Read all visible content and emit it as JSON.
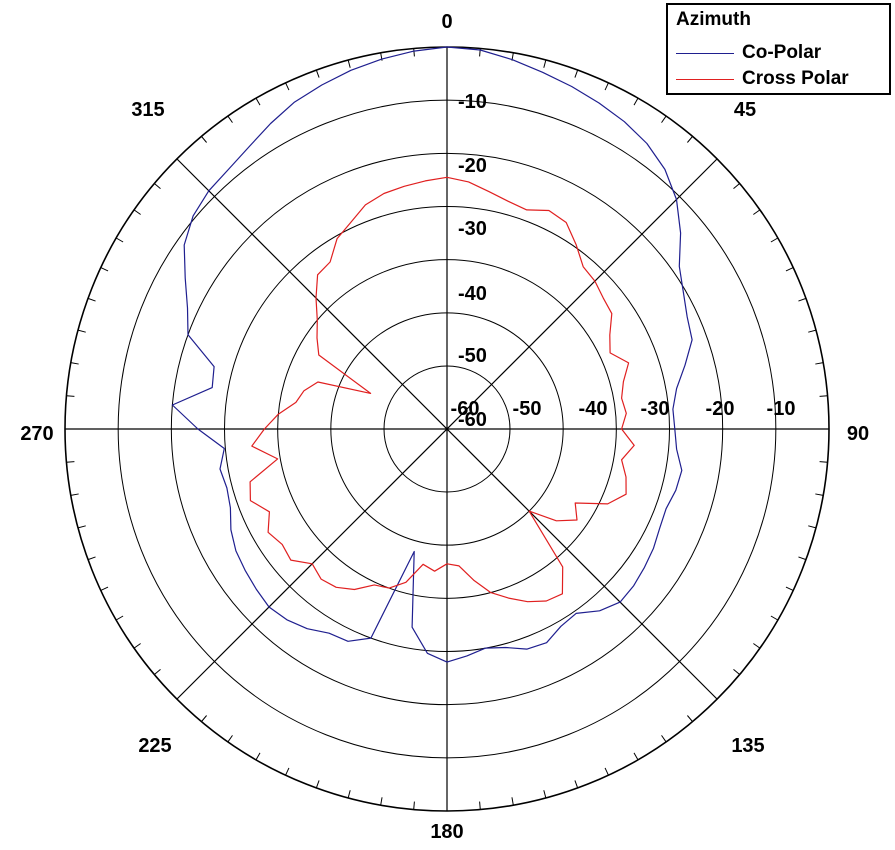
{
  "chart_data": {
    "type": "line",
    "polar": true,
    "legend": {
      "title": "Azimuth",
      "placement": "top-right"
    },
    "angle_ticks": [
      0,
      45,
      90,
      135,
      180,
      225,
      270,
      315
    ],
    "angle_labels": [
      "0",
      "45",
      "90",
      "135",
      "180",
      "225",
      "270",
      "315"
    ],
    "radial_range": [
      -60,
      0
    ],
    "radial_rings": [
      -60,
      -50,
      -40,
      -30,
      -20,
      -10,
      0
    ],
    "radial_labels_vertical": [
      "-10",
      "-20",
      "-30",
      "-40",
      "-50",
      "-60"
    ],
    "radial_labels_horizontal": [
      "-60",
      "-50",
      "-40",
      "-30",
      "-20",
      "-10"
    ],
    "grid": true,
    "series": [
      {
        "name": "Co-Polar",
        "color": "#1f1f8f",
        "points": [
          [
            0,
            0
          ],
          [
            5,
            -0.3
          ],
          [
            10,
            -1.3
          ],
          [
            15,
            -2.4
          ],
          [
            20,
            -3.3
          ],
          [
            25,
            -4.2
          ],
          [
            30,
            -5.1
          ],
          [
            35,
            -6.3
          ],
          [
            40,
            -8.1
          ],
          [
            45,
            -10.8
          ],
          [
            50,
            -14.5
          ],
          [
            55,
            -18.5
          ],
          [
            60,
            -20.5
          ],
          [
            65,
            -22.0
          ],
          [
            70,
            -22.8
          ],
          [
            75,
            -25.5
          ],
          [
            80,
            -28.0
          ],
          [
            85,
            -29.2
          ],
          [
            90,
            -29.0
          ],
          [
            95,
            -28.5
          ],
          [
            100,
            -27.0
          ],
          [
            105,
            -27.3
          ],
          [
            110,
            -28.0
          ],
          [
            115,
            -27.7
          ],
          [
            120,
            -27.0
          ],
          [
            125,
            -26.5
          ],
          [
            130,
            -26.0
          ],
          [
            135,
            -25.8
          ],
          [
            140,
            -27.2
          ],
          [
            145,
            -29.5
          ],
          [
            150,
            -29.0
          ],
          [
            155,
            -27.5
          ],
          [
            160,
            -27.8
          ],
          [
            165,
            -29.3
          ],
          [
            170,
            -30.0
          ],
          [
            175,
            -29.0
          ],
          [
            180,
            -28.0
          ],
          [
            185,
            -29.5
          ],
          [
            190,
            -34.0
          ],
          [
            195,
            -48.0
          ],
          [
            200,
            -30.0
          ],
          [
            205,
            -27.8
          ],
          [
            210,
            -27.5
          ],
          [
            215,
            -26.0
          ],
          [
            220,
            -25.0
          ],
          [
            225,
            -24.5
          ],
          [
            230,
            -25.0
          ],
          [
            235,
            -25.5
          ],
          [
            240,
            -26.0
          ],
          [
            245,
            -27.0
          ],
          [
            250,
            -28.5
          ],
          [
            255,
            -29.0
          ],
          [
            260,
            -28.5
          ],
          [
            265,
            -29.8
          ],
          [
            270,
            -25.0
          ],
          [
            275,
            -20.0
          ],
          [
            280,
            -27.0
          ],
          [
            285,
            -26.5
          ],
          [
            290,
            -20.0
          ],
          [
            295,
            -18.0
          ],
          [
            300,
            -15.0
          ],
          [
            305,
            -11.5
          ],
          [
            310,
            -9.5
          ],
          [
            315,
            -8.5
          ],
          [
            320,
            -8.0
          ],
          [
            325,
            -7.0
          ],
          [
            330,
            -5.5
          ],
          [
            335,
            -4.0
          ],
          [
            340,
            -3.0
          ],
          [
            345,
            -2.0
          ],
          [
            350,
            -1.2
          ],
          [
            355,
            -0.5
          ],
          [
            360,
            0
          ]
        ]
      },
      {
        "name": "Cross Polar",
        "color": "#e02020",
        "points": [
          [
            0,
            -24.5
          ],
          [
            5,
            -25.2
          ],
          [
            10,
            -26.5
          ],
          [
            15,
            -27.5
          ],
          [
            20,
            -28.0
          ],
          [
            25,
            -26.5
          ],
          [
            30,
            -27.0
          ],
          [
            35,
            -29.5
          ],
          [
            40,
            -32.0
          ],
          [
            45,
            -32.5
          ],
          [
            50,
            -33.5
          ],
          [
            55,
            -34.0
          ],
          [
            60,
            -36.5
          ],
          [
            65,
            -38.0
          ],
          [
            70,
            -35.5
          ],
          [
            75,
            -37.5
          ],
          [
            80,
            -38.5
          ],
          [
            85,
            -38.0
          ],
          [
            90,
            -39.0
          ],
          [
            95,
            -36.5
          ],
          [
            100,
            -38.5
          ],
          [
            105,
            -37.0
          ],
          [
            110,
            -36.0
          ],
          [
            115,
            -38.5
          ],
          [
            120,
            -44.0
          ],
          [
            125,
            -42.0
          ],
          [
            130,
            -45.0
          ],
          [
            135,
            -50.0
          ],
          [
            140,
            -38.0
          ],
          [
            145,
            -34.0
          ],
          [
            150,
            -34.5
          ],
          [
            155,
            -36.0
          ],
          [
            160,
            -38.0
          ],
          [
            165,
            -40.0
          ],
          [
            170,
            -43.0
          ],
          [
            175,
            -46.0
          ],
          [
            180,
            -46.5
          ],
          [
            185,
            -45.0
          ],
          [
            190,
            -46.0
          ],
          [
            195,
            -42.0
          ],
          [
            200,
            -40.0
          ],
          [
            205,
            -39.5
          ],
          [
            210,
            -37.0
          ],
          [
            215,
            -35.5
          ],
          [
            220,
            -35.0
          ],
          [
            225,
            -36.0
          ],
          [
            230,
            -33.5
          ],
          [
            235,
            -34.0
          ],
          [
            240,
            -33.0
          ],
          [
            245,
            -35.0
          ],
          [
            250,
            -32.5
          ],
          [
            255,
            -33.5
          ],
          [
            260,
            -39.5
          ],
          [
            265,
            -35.0
          ],
          [
            270,
            -37.5
          ],
          [
            275,
            -40.0
          ],
          [
            280,
            -43.0
          ],
          [
            285,
            -44.0
          ],
          [
            290,
            -46.0
          ],
          [
            295,
            -56.0
          ],
          [
            300,
            -44.0
          ],
          [
            305,
            -42.0
          ],
          [
            310,
            -40.0
          ],
          [
            315,
            -37.0
          ],
          [
            320,
            -34.0
          ],
          [
            325,
            -33.5
          ],
          [
            330,
            -30.5
          ],
          [
            335,
            -29.0
          ],
          [
            340,
            -27.0
          ],
          [
            345,
            -26.0
          ],
          [
            350,
            -25.5
          ],
          [
            355,
            -25.0
          ],
          [
            360,
            -24.5
          ]
        ]
      }
    ]
  }
}
